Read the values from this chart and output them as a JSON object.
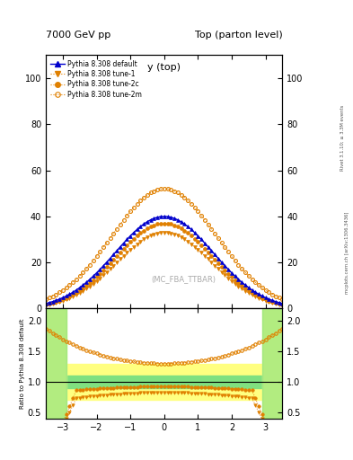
{
  "title_left": "7000 GeV pp",
  "title_right": "Top (parton level)",
  "xlabel": "y (top)",
  "ylabel_ratio": "Ratio to Pythia 8.308 default",
  "watermark": "(MC_FBA_TTBAR)",
  "rivet_label": "Rivet 3.1.10; ≥ 3.3M events",
  "arxiv_label": "mcplots.cern.ch [arXiv:1306.3436]",
  "legend_entries": [
    "Pythia 8.308 default",
    "Pythia 8.308 tune-1",
    "Pythia 8.308 tune-2c",
    "Pythia 8.308 tune-2m"
  ],
  "color_default": "#0000cc",
  "color_orange": "#e08000",
  "main_ylim": [
    0,
    110
  ],
  "main_yticks": [
    0,
    20,
    40,
    60,
    80,
    100
  ],
  "ratio_ylim": [
    0.4,
    2.2
  ],
  "ratio_yticks": [
    0.5,
    1.0,
    1.5,
    2.0
  ],
  "xlim": [
    -3.5,
    3.5
  ],
  "xticks": [
    -3,
    -2,
    -1,
    0,
    1,
    2,
    3
  ]
}
